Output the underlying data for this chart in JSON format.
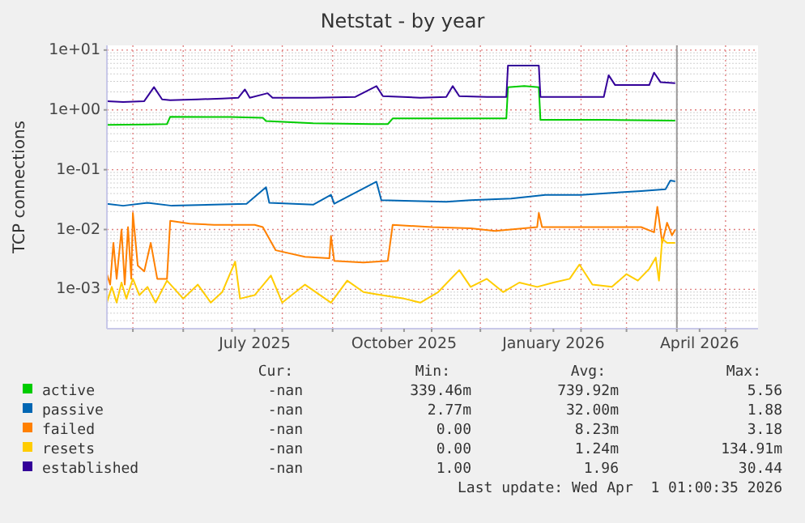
{
  "chart_data": {
    "type": "line",
    "title": "Netstat - by year",
    "ylabel": "TCP connections",
    "log": "y",
    "grid": true,
    "legend": "bottom",
    "marker": "none",
    "line_style": "solid",
    "xlim": [
      "2025-04-15",
      "2026-05-21"
    ],
    "xticks": [
      {
        "value": "2025-05-01",
        "label": null
      },
      {
        "value": "2025-06-01",
        "label": null
      },
      {
        "value": "2025-07-01",
        "label": null
      },
      {
        "value": "2025-07-15",
        "label": "July 2025"
      },
      {
        "value": "2025-08-01",
        "label": null
      },
      {
        "value": "2025-09-01",
        "label": null
      },
      {
        "value": "2025-10-01",
        "label": null
      },
      {
        "value": "2025-10-15",
        "label": "October 2025"
      },
      {
        "value": "2025-11-01",
        "label": null
      },
      {
        "value": "2025-12-01",
        "label": null
      },
      {
        "value": "2026-01-01",
        "label": null
      },
      {
        "value": "2026-01-15",
        "label": "January 2026"
      },
      {
        "value": "2026-02-01",
        "label": null
      },
      {
        "value": "2026-03-01",
        "label": null
      },
      {
        "value": "2026-04-01",
        "label": null
      },
      {
        "value": "2026-04-15",
        "label": "April 2026"
      },
      {
        "value": "2026-05-01",
        "label": null
      }
    ],
    "ylim": [
      0.00022,
      12
    ],
    "yticks": [
      {
        "value": 0.001,
        "label": "1e-03"
      },
      {
        "value": 0.01,
        "label": "1e-02"
      },
      {
        "value": 0.1,
        "label": "1e-01"
      },
      {
        "value": 1,
        "label": "1e+00"
      },
      {
        "value": 10,
        "label": "1e+01"
      }
    ],
    "ref_lines": [
      {
        "axis": "x",
        "value": "2026-04-01",
        "label": null,
        "color": "#999999"
      }
    ],
    "series": [
      {
        "name": "active",
        "color": "#00cc00",
        "x": [
          "2025-04-15",
          "2025-05-10",
          "2025-05-22",
          "2025-05-24",
          "2025-06-30",
          "2025-07-20",
          "2025-07-22",
          "2025-08-20",
          "2025-09-25",
          "2025-10-05",
          "2025-10-08",
          "2025-11-20",
          "2025-12-17",
          "2025-12-18",
          "2025-12-28",
          "2026-01-06",
          "2026-01-07",
          "2026-02-15",
          "2026-03-31"
        ],
        "values": [
          0.56,
          0.57,
          0.58,
          0.77,
          0.76,
          0.74,
          0.65,
          0.6,
          0.58,
          0.58,
          0.72,
          0.72,
          0.72,
          2.4,
          2.5,
          2.4,
          0.68,
          0.68,
          0.66
        ]
      },
      {
        "name": "passive",
        "color": "#0066b3",
        "x": [
          "2025-04-15",
          "2025-04-25",
          "2025-05-10",
          "2025-05-25",
          "2025-06-20",
          "2025-07-10",
          "2025-07-22",
          "2025-07-24",
          "2025-08-20",
          "2025-08-31",
          "2025-09-02",
          "2025-09-28",
          "2025-10-01",
          "2025-10-20",
          "2025-11-10",
          "2025-11-25",
          "2025-12-20",
          "2026-01-10",
          "2026-02-01",
          "2026-02-20",
          "2026-03-10",
          "2026-03-25",
          "2026-03-28",
          "2026-03-31"
        ],
        "values": [
          0.027,
          0.025,
          0.028,
          0.025,
          0.026,
          0.027,
          0.051,
          0.028,
          0.026,
          0.038,
          0.027,
          0.063,
          0.031,
          0.03,
          0.029,
          0.031,
          0.033,
          0.038,
          0.038,
          0.041,
          0.044,
          0.047,
          0.066,
          0.064
        ]
      },
      {
        "name": "failed",
        "color": "#ff8000",
        "x": [
          "2025-04-15",
          "2025-04-17",
          "2025-04-19",
          "2025-04-21",
          "2025-04-24",
          "2025-04-26",
          "2025-04-28",
          "2025-04-30",
          "2025-05-01",
          "2025-05-04",
          "2025-05-08",
          "2025-05-12",
          "2025-05-16",
          "2025-05-22",
          "2025-05-24",
          "2025-06-05",
          "2025-06-20",
          "2025-07-15",
          "2025-07-20",
          "2025-07-28",
          "2025-08-15",
          "2025-08-30",
          "2025-08-31",
          "2025-09-02",
          "2025-09-20",
          "2025-10-05",
          "2025-10-08",
          "2025-11-01",
          "2025-11-25",
          "2025-12-10",
          "2026-01-05",
          "2026-01-06",
          "2026-01-08",
          "2026-02-10",
          "2026-03-10",
          "2026-03-18",
          "2026-03-20",
          "2026-03-23",
          "2026-03-26",
          "2026-03-29",
          "2026-03-31"
        ],
        "values": [
          0.0018,
          0.0012,
          0.006,
          0.0015,
          0.01,
          0.0012,
          0.011,
          0.0015,
          0.019,
          0.0025,
          0.002,
          0.006,
          0.0015,
          0.0015,
          0.014,
          0.0125,
          0.012,
          0.012,
          0.011,
          0.0045,
          0.0035,
          0.0033,
          0.0078,
          0.003,
          0.0028,
          0.003,
          0.012,
          0.011,
          0.0105,
          0.0095,
          0.011,
          0.019,
          0.011,
          0.011,
          0.011,
          0.009,
          0.024,
          0.006,
          0.013,
          0.008,
          0.01
        ]
      },
      {
        "name": "resets",
        "color": "#ffcc00",
        "x": [
          "2025-04-15",
          "2025-04-18",
          "2025-04-21",
          "2025-04-24",
          "2025-04-27",
          "2025-05-01",
          "2025-05-05",
          "2025-05-10",
          "2025-05-15",
          "2025-05-22",
          "2025-06-01",
          "2025-06-10",
          "2025-06-18",
          "2025-06-25",
          "2025-07-03",
          "2025-07-06",
          "2025-07-15",
          "2025-07-25",
          "2025-08-01",
          "2025-08-15",
          "2025-08-31",
          "2025-09-10",
          "2025-09-20",
          "2025-10-01",
          "2025-10-15",
          "2025-10-25",
          "2025-11-05",
          "2025-11-18",
          "2025-11-25",
          "2025-12-05",
          "2025-12-15",
          "2025-12-25",
          "2026-01-05",
          "2026-01-15",
          "2026-01-25",
          "2026-01-31",
          "2026-02-08",
          "2026-02-20",
          "2026-03-01",
          "2026-03-08",
          "2026-03-15",
          "2026-03-19",
          "2026-03-21",
          "2026-03-23",
          "2026-03-26",
          "2026-03-31"
        ],
        "values": [
          0.0006,
          0.0011,
          0.0006,
          0.0013,
          0.0007,
          0.0015,
          0.0008,
          0.0011,
          0.0006,
          0.0014,
          0.0007,
          0.0012,
          0.0006,
          0.0009,
          0.0029,
          0.0007,
          0.0008,
          0.0017,
          0.0006,
          0.0012,
          0.0006,
          0.0014,
          0.0009,
          0.0008,
          0.0007,
          0.0006,
          0.0009,
          0.0021,
          0.0011,
          0.0015,
          0.0009,
          0.0013,
          0.0011,
          0.0013,
          0.0015,
          0.0026,
          0.0012,
          0.0011,
          0.0018,
          0.0014,
          0.0022,
          0.0034,
          0.0014,
          0.007,
          0.006,
          0.006
        ]
      },
      {
        "name": "established",
        "color": "#330099",
        "x": [
          "2025-04-15",
          "2025-04-25",
          "2025-05-08",
          "2025-05-14",
          "2025-05-19",
          "2025-05-24",
          "2025-06-10",
          "2025-06-25",
          "2025-07-05",
          "2025-07-09",
          "2025-07-12",
          "2025-07-23",
          "2025-07-26",
          "2025-08-20",
          "2025-09-15",
          "2025-09-28",
          "2025-10-02",
          "2025-10-25",
          "2025-11-10",
          "2025-11-14",
          "2025-11-18",
          "2025-12-05",
          "2025-12-17",
          "2025-12-18",
          "2026-01-06",
          "2026-01-07",
          "2026-02-15",
          "2026-02-18",
          "2026-02-22",
          "2026-03-15",
          "2026-03-18",
          "2026-03-22",
          "2026-03-31"
        ],
        "values": [
          1.4,
          1.35,
          1.4,
          2.4,
          1.5,
          1.45,
          1.5,
          1.55,
          1.6,
          2.2,
          1.6,
          1.9,
          1.6,
          1.6,
          1.65,
          2.5,
          1.7,
          1.6,
          1.65,
          2.5,
          1.7,
          1.65,
          1.65,
          5.5,
          5.5,
          1.65,
          1.65,
          3.8,
          2.6,
          2.6,
          4.2,
          2.9,
          2.8
        ]
      }
    ],
    "annotations": [
      "Cur:",
      "Min:",
      "Avg:",
      "Max:",
      "-nan",
      "339.46m",
      "739.92m",
      "5.56",
      "-nan",
      "2.77m",
      "32.00m",
      "1.88",
      "-nan",
      "0.00",
      "8.23m",
      "3.18",
      "-nan",
      "0.00",
      "1.24m",
      "134.91m",
      "-nan",
      "1.00",
      "1.96",
      "30.44",
      "Last update: Wed Apr  1 01:00:35 2026"
    ]
  }
}
